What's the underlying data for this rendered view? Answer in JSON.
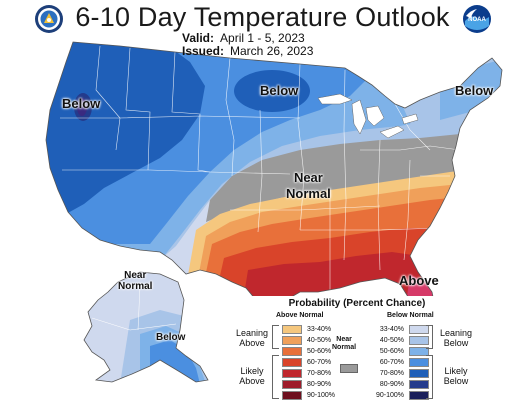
{
  "header": {
    "title": "6-10 Day Temperature Outlook",
    "valid_label": "Valid:",
    "valid_value": "April 1 - 5, 2023",
    "issued_label": "Issued:",
    "issued_value": "March 26, 2023",
    "left_logo": "noaa-commerce-seal",
    "right_logo": "noaa-logo",
    "right_logo_text": "NOAA"
  },
  "map": {
    "region_labels": {
      "west_below": "Below",
      "north_below": "Below",
      "east_below": "Below",
      "center_near": "Near",
      "center_normal": "Normal",
      "southeast_above": "Above",
      "alaska_near": "Near",
      "alaska_normal": "Normal",
      "alaska_below": "Below"
    }
  },
  "legend": {
    "title": "Probability (Percent Chance)",
    "above_header": "Above Normal",
    "below_header": "Below Normal",
    "near_normal_label": "Near Normal",
    "near_normal_line1": "Near",
    "near_normal_line2": "Normal",
    "leaning_above_1": "Leaning",
    "leaning_above_2": "Above",
    "likely_above_1": "Likely",
    "likely_above_2": "Above",
    "leaning_below_1": "Leaning",
    "leaning_below_2": "Below",
    "likely_below_1": "Likely",
    "likely_below_2": "Below",
    "ranges": [
      "33-40%",
      "40-50%",
      "50-60%",
      "60-70%",
      "70-80%",
      "80-90%",
      "90-100%"
    ],
    "above_colors": [
      "#f5c77e",
      "#f0a05a",
      "#e8703a",
      "#d9442a",
      "#c0272d",
      "#9e1b2a",
      "#6e0f1e"
    ],
    "below_colors": [
      "#cfd9ee",
      "#a8c4e8",
      "#7eb2e8",
      "#4b8fe0",
      "#1f5fb8",
      "#243b8c",
      "#1a1f5a"
    ],
    "near_color": "#9a9a9a"
  }
}
